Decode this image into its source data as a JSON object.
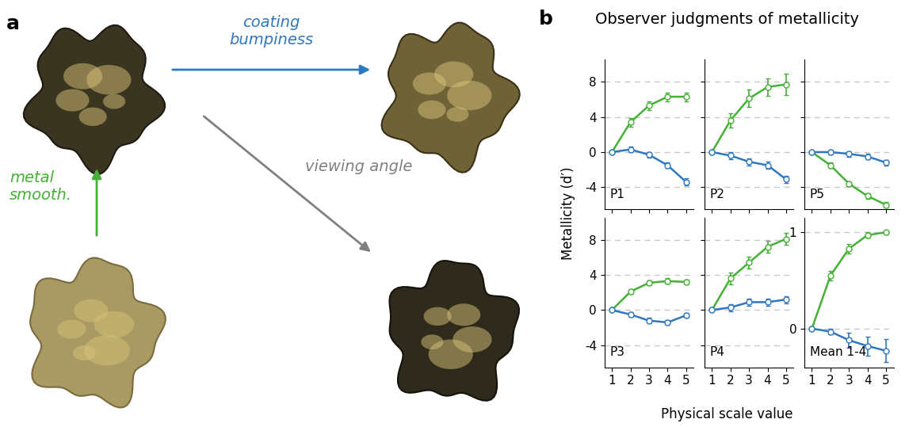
{
  "panel_a": {
    "label": "a",
    "arrows": [
      {
        "text": "coating\nbumpiness",
        "color": "#2f78c0"
      },
      {
        "text": "metal\nsmooth.",
        "color": "#44b035"
      },
      {
        "text": "viewing angle",
        "color": "#808080"
      }
    ]
  },
  "panel_b": {
    "label": "b",
    "title": "Observer judgments of metallicity",
    "x_label": "Physical scale value",
    "y_label": "Metallicity (d′)"
  },
  "chart_data": [
    {
      "type": "line",
      "annotation": "P1",
      "x": [
        1,
        2,
        3,
        4,
        5
      ],
      "xlim": [
        0.6,
        5.4
      ],
      "xticks": [
        1,
        2,
        3,
        4,
        5
      ],
      "ylim": [
        -6.5,
        10.5
      ],
      "yticks": [
        -4,
        0,
        4,
        8
      ],
      "grid": true,
      "tick_labels": "y",
      "marker": "o",
      "series": [
        {
          "color": "#44b035",
          "values": [
            0,
            3.4,
            5.3,
            6.3,
            6.3
          ],
          "errors": [
            0,
            0.5,
            0.5,
            0.5,
            0.5
          ]
        },
        {
          "color": "#2f78c0",
          "values": [
            0,
            0.3,
            -0.3,
            -1.5,
            -3.4
          ],
          "errors": [
            0,
            0.3,
            0.3,
            0.3,
            0.4
          ]
        }
      ]
    },
    {
      "type": "line",
      "annotation": "P2",
      "x": [
        1,
        2,
        3,
        4,
        5
      ],
      "xlim": [
        0.6,
        5.4
      ],
      "xticks": [
        1,
        2,
        3,
        4,
        5
      ],
      "ylim": [
        -6.5,
        10.5
      ],
      "yticks": [
        -4,
        0,
        4,
        8
      ],
      "grid": true,
      "tick_labels": false,
      "marker": "o",
      "series": [
        {
          "color": "#44b035",
          "values": [
            0,
            3.6,
            6.1,
            7.4,
            7.7
          ],
          "errors": [
            0,
            0.8,
            1.0,
            1.0,
            1.2
          ]
        },
        {
          "color": "#2f78c0",
          "values": [
            0,
            -0.4,
            -1.1,
            -1.5,
            -3.1
          ],
          "errors": [
            0,
            0.4,
            0.4,
            0.4,
            0.4
          ]
        }
      ]
    },
    {
      "type": "line",
      "annotation": "P5",
      "x": [
        1,
        2,
        3,
        4,
        5
      ],
      "xlim": [
        0.6,
        5.4
      ],
      "xticks": [
        1,
        2,
        3,
        4,
        5
      ],
      "ylim": [
        -6.5,
        10.5
      ],
      "yticks": [
        -4,
        0,
        4,
        8
      ],
      "grid": true,
      "tick_labels": false,
      "marker": "o",
      "series": [
        {
          "color": "#44b035",
          "values": [
            0,
            -1.5,
            -3.6,
            -5.0,
            -6.0
          ],
          "errors": [
            0,
            0.3,
            0.3,
            0.3,
            0.3
          ]
        },
        {
          "color": "#2f78c0",
          "values": [
            0,
            0,
            -0.2,
            -0.5,
            -1.2
          ],
          "errors": [
            0,
            0.3,
            0.3,
            0.3,
            0.3
          ]
        }
      ]
    },
    {
      "type": "line",
      "annotation": "P3",
      "x": [
        1,
        2,
        3,
        4,
        5
      ],
      "xlim": [
        0.6,
        5.4
      ],
      "xticks": [
        1,
        2,
        3,
        4,
        5
      ],
      "ylim": [
        -6.5,
        10.5
      ],
      "yticks": [
        -4,
        0,
        4,
        8
      ],
      "grid": true,
      "marker": "o",
      "series": [
        {
          "color": "#44b035",
          "values": [
            0,
            2.1,
            3.1,
            3.3,
            3.2
          ],
          "errors": [
            0,
            0.3,
            0.3,
            0.3,
            0.3
          ]
        },
        {
          "color": "#2f78c0",
          "values": [
            0,
            -0.5,
            -1.2,
            -1.4,
            -0.6
          ],
          "errors": [
            0,
            0.3,
            0.3,
            0.3,
            0.3
          ]
        }
      ]
    },
    {
      "type": "line",
      "annotation": "P4",
      "x": [
        1,
        2,
        3,
        4,
        5
      ],
      "xlim": [
        0.6,
        5.4
      ],
      "xticks": [
        1,
        2,
        3,
        4,
        5
      ],
      "ylim": [
        -6.5,
        10.5
      ],
      "yticks": [
        -4,
        0,
        4,
        8
      ],
      "grid": true,
      "tick_labels": "x",
      "marker": "o",
      "series": [
        {
          "color": "#44b035",
          "values": [
            0,
            3.6,
            5.4,
            7.2,
            8.1
          ],
          "errors": [
            0,
            0.7,
            0.7,
            0.7,
            0.7
          ]
        },
        {
          "color": "#2f78c0",
          "values": [
            0,
            0.3,
            0.9,
            0.9,
            1.2
          ],
          "errors": [
            0,
            0.4,
            0.4,
            0.4,
            0.4
          ]
        }
      ]
    },
    {
      "type": "line",
      "annotation": "Mean 1-4",
      "x": [
        1,
        2,
        3,
        4,
        5
      ],
      "xlim": [
        0.6,
        5.4
      ],
      "xticks": [
        1,
        2,
        3,
        4,
        5
      ],
      "ylim": [
        -0.4,
        1.15
      ],
      "yticks": [
        0,
        1
      ],
      "grid": true,
      "marker": "o",
      "series": [
        {
          "color": "#44b035",
          "values": [
            0,
            0.55,
            0.83,
            0.97,
            1.0
          ],
          "errors": [
            0,
            0.05,
            0.05,
            0.03,
            0.02
          ]
        },
        {
          "color": "#2f78c0",
          "values": [
            0,
            -0.03,
            -0.12,
            -0.18,
            -0.23
          ],
          "errors": [
            0,
            0.03,
            0.08,
            0.1,
            0.12
          ]
        }
      ]
    }
  ]
}
